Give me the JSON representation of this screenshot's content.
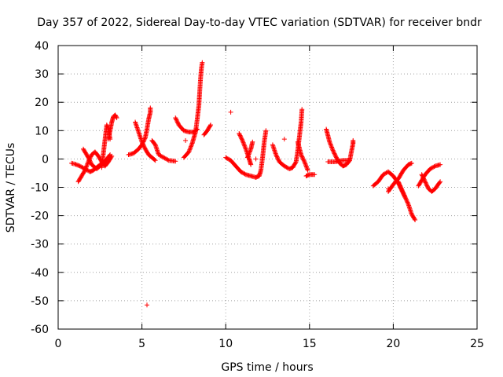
{
  "chart_data": {
    "type": "scatter",
    "title": "Day 357 of 2022, Sidereal Day-to-day VTEC variation (SDTVAR) for receiver bndr",
    "xlabel": "GPS time / hours",
    "ylabel": "SDTVAR / TECUs",
    "xlim": [
      0,
      25
    ],
    "ylim": [
      -60,
      40
    ],
    "xticks": [
      "0",
      "5",
      "10",
      "15",
      "20",
      "25"
    ],
    "yticks": [
      "40",
      "30",
      "20",
      "10",
      "0",
      "-10",
      "-20",
      "-30",
      "-40",
      "-50",
      "-60"
    ],
    "grid": true,
    "marker": "+",
    "colors": {
      "points": "#ff0000"
    },
    "segments": [
      [
        [
          0.8,
          -1.5
        ],
        [
          1.0,
          -1.8
        ],
        [
          1.3,
          -2.5
        ],
        [
          1.6,
          -3.5
        ],
        [
          1.9,
          -4.5
        ],
        [
          2.1,
          -4.0
        ],
        [
          2.3,
          -3.0
        ],
        [
          2.5,
          -2.0
        ],
        [
          2.7,
          -1.5
        ]
      ],
      [
        [
          1.2,
          -8.0
        ],
        [
          1.4,
          -6.0
        ],
        [
          1.6,
          -4.0
        ],
        [
          1.8,
          -1.0
        ],
        [
          2.0,
          1.5
        ],
        [
          2.2,
          2.5
        ],
        [
          2.4,
          1.0
        ],
        [
          2.6,
          -1.0
        ],
        [
          2.8,
          -2.5
        ],
        [
          3.0,
          -1.0
        ],
        [
          3.2,
          1.0
        ]
      ],
      [
        [
          1.5,
          3.5
        ],
        [
          1.8,
          0.5
        ],
        [
          2.0,
          -2.0
        ],
        [
          2.3,
          -3.5
        ],
        [
          2.6,
          -2.0
        ],
        [
          2.9,
          0.0
        ],
        [
          3.1,
          1.5
        ]
      ],
      [
        [
          2.6,
          -3.0
        ],
        [
          2.7,
          2.0
        ],
        [
          2.8,
          7.0
        ],
        [
          2.9,
          12.0
        ],
        [
          3.0,
          10.5
        ],
        [
          3.1,
          7.0
        ]
      ],
      [
        [
          3.0,
          7.0
        ],
        [
          3.1,
          10.0
        ],
        [
          3.2,
          13.0
        ],
        [
          3.3,
          15.0
        ],
        [
          3.4,
          15.5
        ],
        [
          3.5,
          14.5
        ]
      ],
      [
        [
          4.2,
          1.5
        ],
        [
          4.5,
          2.0
        ],
        [
          4.8,
          3.5
        ],
        [
          5.0,
          5.0
        ],
        [
          5.2,
          7.5
        ],
        [
          5.3,
          10.5
        ],
        [
          5.4,
          14.0
        ],
        [
          5.5,
          16.5
        ],
        [
          5.5,
          18.0
        ]
      ],
      [
        [
          4.6,
          13.0
        ],
        [
          4.8,
          9.5
        ],
        [
          5.0,
          6.0
        ],
        [
          5.2,
          3.5
        ],
        [
          5.4,
          1.5
        ],
        [
          5.6,
          0.5
        ],
        [
          5.8,
          -0.5
        ]
      ],
      [
        [
          5.6,
          6.5
        ],
        [
          5.8,
          5.0
        ],
        [
          6.0,
          1.5
        ],
        [
          6.3,
          0.5
        ],
        [
          6.6,
          -0.5
        ],
        [
          7.0,
          -0.8
        ]
      ],
      [
        [
          7.0,
          14.5
        ],
        [
          7.2,
          12.0
        ],
        [
          7.5,
          10.0
        ],
        [
          7.8,
          9.5
        ],
        [
          8.1,
          9.5
        ],
        [
          8.3,
          10.5
        ]
      ],
      [
        [
          7.5,
          0.5
        ],
        [
          7.8,
          2.5
        ],
        [
          8.0,
          5.5
        ],
        [
          8.2,
          9.5
        ],
        [
          8.3,
          14.0
        ],
        [
          8.4,
          19.0
        ],
        [
          8.45,
          24.0
        ],
        [
          8.5,
          28.5
        ],
        [
          8.55,
          32.0
        ],
        [
          8.6,
          34.0
        ]
      ],
      [
        [
          8.7,
          8.5
        ],
        [
          8.9,
          10.0
        ],
        [
          9.1,
          12.0
        ]
      ],
      [
        [
          10.0,
          0.5
        ],
        [
          10.3,
          -0.5
        ],
        [
          10.6,
          -2.5
        ],
        [
          10.9,
          -4.5
        ],
        [
          11.2,
          -5.5
        ],
        [
          11.5,
          -6.0
        ],
        [
          11.8,
          -6.5
        ],
        [
          12.0,
          -6.0
        ],
        [
          12.1,
          -4.0
        ],
        [
          12.2,
          0.5
        ],
        [
          12.3,
          6.0
        ],
        [
          12.4,
          10.0
        ]
      ],
      [
        [
          10.8,
          9.0
        ],
        [
          11.0,
          6.5
        ],
        [
          11.2,
          3.5
        ],
        [
          11.4,
          0.0
        ],
        [
          11.5,
          -2.0
        ]
      ],
      [
        [
          11.3,
          0.5
        ],
        [
          11.5,
          3.5
        ],
        [
          11.6,
          6.0
        ]
      ],
      [
        [
          12.8,
          5.0
        ],
        [
          13.0,
          1.5
        ],
        [
          13.2,
          -1.0
        ],
        [
          13.5,
          -2.5
        ],
        [
          13.8,
          -3.5
        ],
        [
          14.0,
          -3.0
        ],
        [
          14.2,
          -1.0
        ],
        [
          14.3,
          3.0
        ],
        [
          14.4,
          8.0
        ],
        [
          14.5,
          13.0
        ],
        [
          14.55,
          17.5
        ]
      ],
      [
        [
          14.3,
          6.0
        ],
        [
          14.5,
          1.5
        ],
        [
          14.7,
          -1.0
        ],
        [
          14.9,
          -4.0
        ]
      ],
      [
        [
          14.8,
          -6.0
        ],
        [
          15.0,
          -5.5
        ],
        [
          15.3,
          -5.5
        ]
      ],
      [
        [
          16.0,
          10.5
        ],
        [
          16.2,
          6.0
        ],
        [
          16.4,
          3.0
        ],
        [
          16.6,
          0.5
        ],
        [
          16.8,
          -1.5
        ],
        [
          17.0,
          -2.5
        ],
        [
          17.2,
          -2.0
        ],
        [
          17.4,
          -0.5
        ],
        [
          17.5,
          2.5
        ],
        [
          17.6,
          5.5
        ],
        [
          17.6,
          6.5
        ]
      ],
      [
        [
          16.1,
          -1.0
        ],
        [
          16.5,
          -1.0
        ],
        [
          17.0,
          -0.5
        ],
        [
          17.4,
          -0.5
        ]
      ],
      [
        [
          18.8,
          -9.5
        ],
        [
          19.1,
          -8.0
        ],
        [
          19.4,
          -5.5
        ],
        [
          19.7,
          -4.5
        ],
        [
          20.0,
          -6.0
        ],
        [
          20.3,
          -8.5
        ],
        [
          20.5,
          -11.0
        ],
        [
          20.7,
          -13.5
        ]
      ],
      [
        [
          19.7,
          -11.5
        ],
        [
          20.0,
          -9.0
        ],
        [
          20.3,
          -7.0
        ],
        [
          20.6,
          -4.0
        ],
        [
          20.9,
          -2.0
        ],
        [
          21.1,
          -1.5
        ]
      ],
      [
        [
          20.3,
          -8.0
        ],
        [
          20.6,
          -12.0
        ],
        [
          20.9,
          -16.0
        ],
        [
          21.1,
          -19.5
        ],
        [
          21.3,
          -21.5
        ]
      ],
      [
        [
          21.5,
          -9.5
        ],
        [
          21.7,
          -7.5
        ],
        [
          21.9,
          -5.5
        ],
        [
          22.2,
          -3.5
        ],
        [
          22.5,
          -2.5
        ],
        [
          22.8,
          -2.0
        ]
      ],
      [
        [
          21.7,
          -5.5
        ],
        [
          21.9,
          -8.0
        ],
        [
          22.1,
          -10.5
        ],
        [
          22.3,
          -11.5
        ],
        [
          22.5,
          -10.5
        ],
        [
          22.8,
          -8.0
        ]
      ]
    ],
    "outliers": [
      [
        10.3,
        16.5
      ],
      [
        13.5,
        7.0
      ],
      [
        11.8,
        0.0
      ],
      [
        19.7,
        -10.5
      ],
      [
        5.3,
        -51.5
      ],
      [
        7.6,
        6.5
      ]
    ]
  }
}
